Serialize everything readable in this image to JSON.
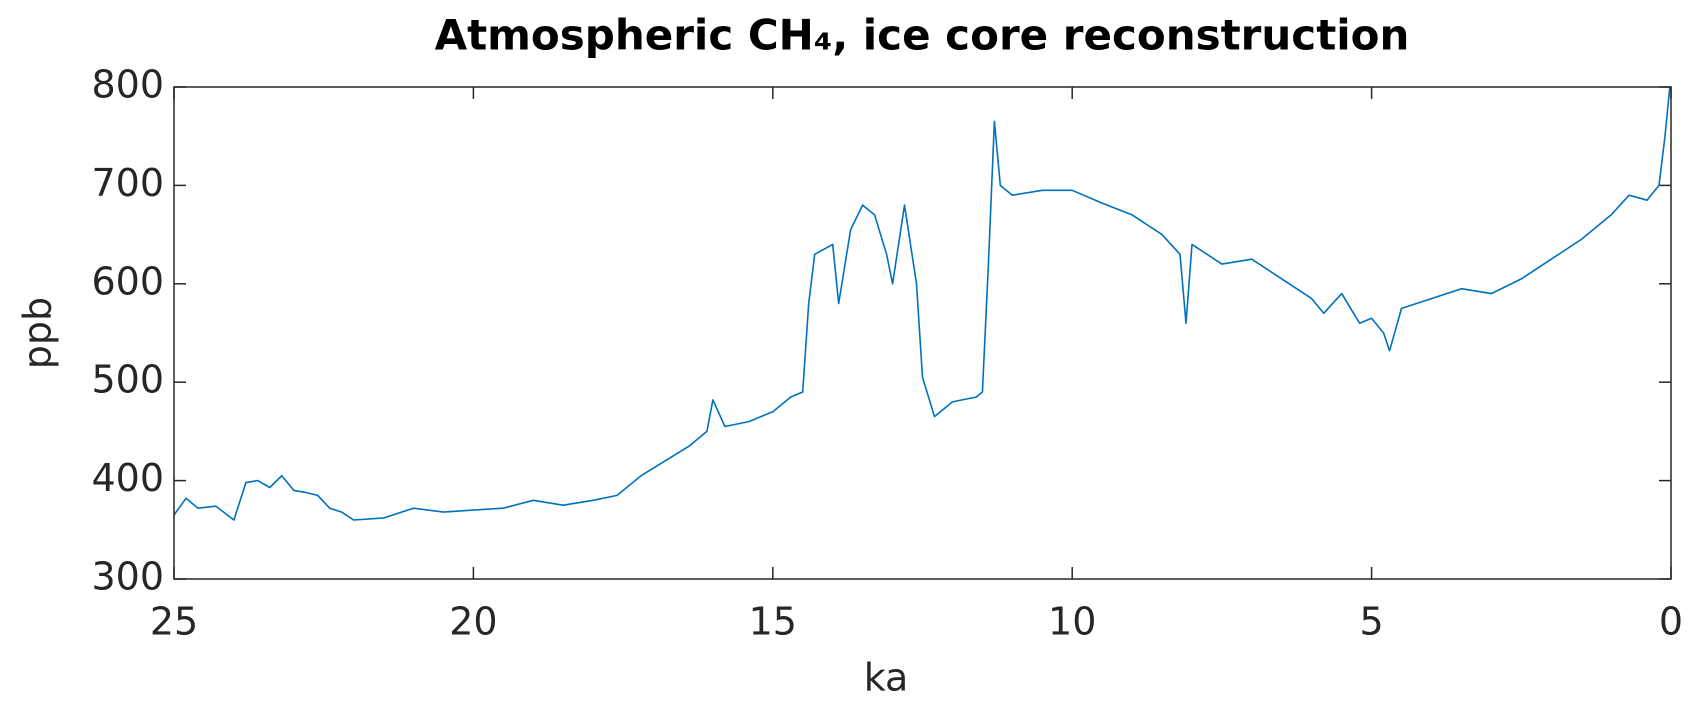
{
  "chart_data": {
    "type": "line",
    "title": "Atmospheric CH₄, ice core reconstruction",
    "xlabel": "ka",
    "ylabel": "ppb",
    "x": [
      25.0,
      24.8,
      24.6,
      24.3,
      24.0,
      23.8,
      23.6,
      23.4,
      23.2,
      23.0,
      22.8,
      22.6,
      22.4,
      22.2,
      22.0,
      21.5,
      21.0,
      20.5,
      20.0,
      19.5,
      19.0,
      18.5,
      18.0,
      17.6,
      17.2,
      16.8,
      16.4,
      16.1,
      16.0,
      15.8,
      15.4,
      15.0,
      14.7,
      14.5,
      14.4,
      14.3,
      14.0,
      13.9,
      13.7,
      13.5,
      13.3,
      13.1,
      13.0,
      12.8,
      12.6,
      12.5,
      12.3,
      12.0,
      11.6,
      11.5,
      11.4,
      11.3,
      11.2,
      11.0,
      10.5,
      10.0,
      9.5,
      9.0,
      8.5,
      8.2,
      8.1,
      8.0,
      7.5,
      7.0,
      6.5,
      6.0,
      5.8,
      5.5,
      5.2,
      5.0,
      4.8,
      4.7,
      4.5,
      4.0,
      3.5,
      3.0,
      2.5,
      2.0,
      1.5,
      1.0,
      0.7,
      0.4,
      0.2,
      0.1,
      0.02
    ],
    "series": [
      {
        "name": "CH4",
        "color": "#0072bd",
        "values": [
          365,
          382,
          372,
          374,
          360,
          398,
          400,
          393,
          405,
          390,
          388,
          385,
          372,
          368,
          360,
          362,
          372,
          368,
          370,
          372,
          380,
          375,
          380,
          385,
          405,
          420,
          435,
          450,
          482,
          455,
          460,
          470,
          485,
          490,
          580,
          630,
          640,
          580,
          655,
          680,
          670,
          630,
          600,
          680,
          600,
          505,
          465,
          480,
          485,
          490,
          620,
          765,
          700,
          690,
          695,
          695,
          682,
          670,
          650,
          630,
          560,
          640,
          620,
          625,
          605,
          585,
          570,
          590,
          560,
          565,
          550,
          532,
          575,
          585,
          595,
          590,
          605,
          625,
          645,
          670,
          690,
          685,
          700,
          750,
          800
        ]
      }
    ],
    "xlim": [
      25,
      0
    ],
    "xticks": [
      25,
      20,
      15,
      10,
      5,
      0
    ],
    "ylim": [
      300,
      800
    ],
    "yticks": [
      300,
      400,
      500,
      600,
      700,
      800
    ]
  }
}
